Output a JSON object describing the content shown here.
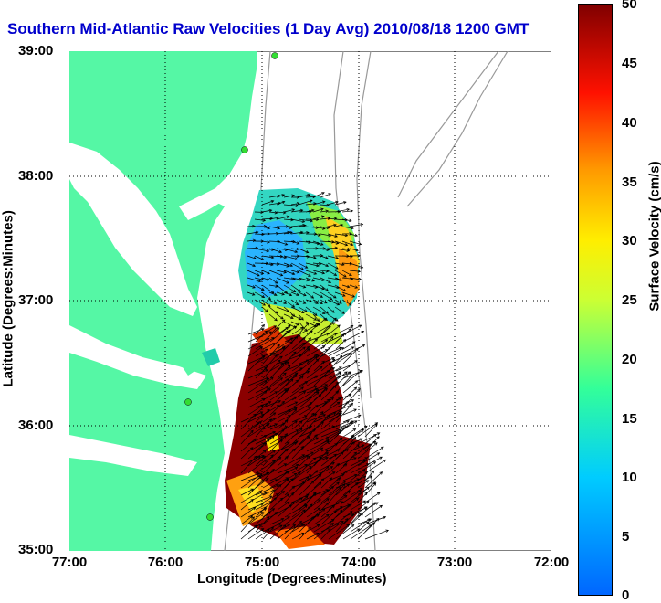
{
  "title": "Southern Mid-Atlantic Raw Velocities (1 Day Avg) 2010/08/18 1200 GMT",
  "xaxis": {
    "label": "Longitude (Degrees:Minutes)",
    "ticks": [
      "77:00",
      "76:00",
      "75:00",
      "74:00",
      "73:00",
      "72:00"
    ]
  },
  "yaxis": {
    "label": "Latitude (Degrees:Minutes)",
    "ticks": [
      "39:00",
      "38:00",
      "37:00",
      "36:00",
      "35:00"
    ]
  },
  "colorbar": {
    "label": "Surface Velocity (cm/s)",
    "ticks": [
      "50",
      "45",
      "40",
      "35",
      "30",
      "25",
      "20",
      "15",
      "10",
      "5",
      "0"
    ]
  },
  "colors": {
    "land": "#55f7a5",
    "title": "#0000cc",
    "grid": "#000000",
    "bathymetry": "#999999"
  },
  "chart_data": {
    "type": "heatmap",
    "title": "Southern Mid-Atlantic Raw Velocities (1 Day Avg) 2010/08/18 1200 GMT",
    "xlabel": "Longitude (Degrees:Minutes)",
    "ylabel": "Latitude (Degrees:Minutes)",
    "xlim": [
      -77,
      -72
    ],
    "ylim": [
      35,
      39
    ],
    "colorbar_range": [
      0,
      50
    ],
    "grid": true
  }
}
